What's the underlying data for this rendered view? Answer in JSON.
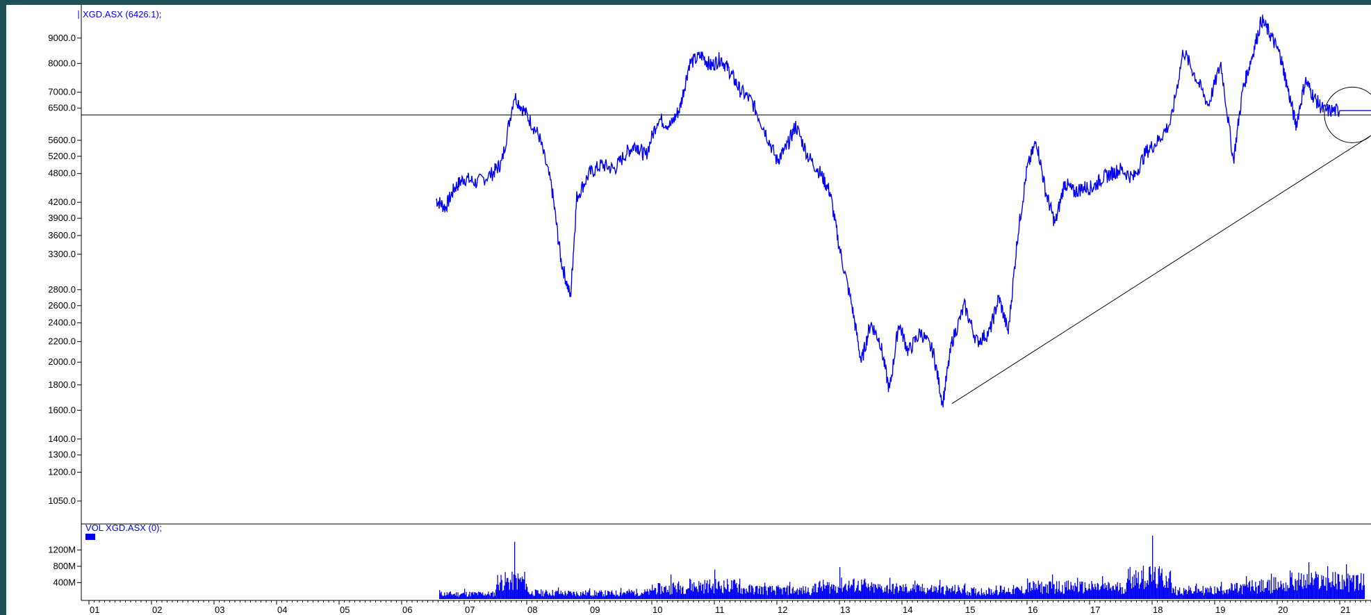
{
  "colors": {
    "background": "#1f4f57",
    "panel": "#ffffff",
    "series": "#0000ff",
    "axis": "#000000"
  },
  "chart_data": [
    {
      "type": "line",
      "title": "XGD.ASX (6426.1);",
      "y_scale": "log",
      "ylim": [
        950,
        10500
      ],
      "yticks": [
        9000.0,
        8000.0,
        7000.0,
        6500.0,
        5600.0,
        5200.0,
        4800.0,
        4200.0,
        3900.0,
        3600.0,
        3300.0,
        2800.0,
        2600.0,
        2400.0,
        2200.0,
        2000.0,
        1800.0,
        1600.0,
        1400.0,
        1300.0,
        1200.0,
        1050.0
      ],
      "ytick_labels": [
        "9000.0",
        "8000.0",
        "7000.0",
        "6500.0",
        "5600.0",
        "5200.0",
        "4800.0",
        "4200.0",
        "3900.0",
        "3600.0",
        "3300.0",
        "2800.0",
        "2600.0",
        "2400.0",
        "2200.0",
        "2000.0",
        "1800.0",
        "1600.0",
        "1400.0",
        "1300.0",
        "1200.0",
        "1050.0"
      ],
      "x_tick_labels": [
        "01",
        "02",
        "03",
        "04",
        "05",
        "06",
        "07",
        "08",
        "09",
        "10",
        "11",
        "12",
        "13",
        "14",
        "15",
        "16",
        "17",
        "18",
        "19",
        "20",
        "21"
      ],
      "xlim": [
        2001.0,
        2022.1
      ],
      "series": [
        {
          "x": [
            2006.55,
            2006.7,
            2006.85,
            2007.0,
            2007.2,
            2007.45,
            2007.6,
            2007.8,
            2008.0,
            2008.2,
            2008.4,
            2008.55,
            2008.7,
            2008.8,
            2009.0,
            2009.2,
            2009.4,
            2009.6,
            2009.75,
            2009.9,
            2010.1,
            2010.3,
            2010.45,
            2010.6,
            2010.8,
            2010.95,
            2011.1,
            2011.25,
            2011.4,
            2011.6,
            2011.8,
            2012.0,
            2012.15,
            2012.3,
            2012.5,
            2012.7,
            2012.85,
            2013.0,
            2013.2,
            2013.35,
            2013.5,
            2013.65,
            2013.8,
            2013.95,
            2014.1,
            2014.3,
            2014.5,
            2014.65,
            2014.8,
            2015.0,
            2015.2,
            2015.4,
            2015.55,
            2015.7,
            2015.85,
            2016.0,
            2016.15,
            2016.3,
            2016.45,
            2016.6,
            2016.75,
            2016.9,
            2017.05,
            2017.2,
            2017.35,
            2017.5,
            2017.7,
            2017.9,
            2018.1,
            2018.3,
            2018.5,
            2018.7,
            2018.9,
            2019.1,
            2019.3,
            2019.45,
            2019.6,
            2019.75,
            2019.9,
            2020.05,
            2020.15,
            2020.3,
            2020.45,
            2020.6,
            2020.75,
            2020.95,
            2021.1,
            2021.25,
            2021.4,
            2021.55
          ],
          "y": [
            4250,
            4100,
            4500,
            4700,
            4600,
            4800,
            5050,
            6900,
            6300,
            5700,
            4500,
            3200,
            2700,
            4300,
            4800,
            5000,
            4900,
            5300,
            5500,
            5200,
            6200,
            6000,
            6500,
            8000,
            8300,
            7900,
            8200,
            7700,
            7100,
            6700,
            5900,
            5100,
            5400,
            6000,
            5200,
            4800,
            4400,
            3400,
            2600,
            2000,
            2400,
            2200,
            1750,
            2400,
            2100,
            2300,
            2100,
            1650,
            2200,
            2600,
            2200,
            2300,
            2700,
            2300,
            3600,
            4900,
            5600,
            4400,
            3800,
            4600,
            4400,
            4500,
            4500,
            4700,
            4800,
            4900,
            4700,
            5300,
            5600,
            6100,
            8500,
            7500,
            6600,
            8000,
            5100,
            7100,
            8300,
            9800,
            9100,
            8300,
            7300,
            6000,
            7400,
            6800,
            6426.1,
            6426.1,
            6426.1,
            6426.1,
            6426.1,
            6426.1
          ]
        }
      ],
      "annotations": {
        "horizontal_line": 6300,
        "trendline": [
          [
            2014.8,
            1650
          ],
          [
            2022.1,
            6400
          ]
        ],
        "circle_center": [
          2021.2,
          6300
        ]
      }
    },
    {
      "type": "bar",
      "title": "VOL XGD.ASX (0);",
      "ylim": [
        0,
        1700
      ],
      "yticks": [
        1200,
        800,
        400
      ],
      "ytick_labels": [
        "1200M",
        "800M",
        "400M"
      ],
      "series": [
        {
          "x": [
            2006.6,
            2007.0,
            2007.5,
            2007.8,
            2008.0,
            2008.5,
            2009.0,
            2009.5,
            2010.0,
            2010.3,
            2010.6,
            2011.0,
            2011.4,
            2011.8,
            2012.2,
            2012.6,
            2013.0,
            2013.4,
            2013.8,
            2014.2,
            2014.6,
            2015.0,
            2015.5,
            2016.0,
            2016.4,
            2016.8,
            2017.2,
            2017.6,
            2018.0,
            2018.3,
            2018.7,
            2019.1,
            2019.5,
            2019.9,
            2020.2,
            2020.5,
            2020.8,
            2021.1,
            2021.4
          ],
          "y": [
            220,
            250,
            230,
            1400,
            300,
            280,
            260,
            270,
            350,
            600,
            500,
            720,
            500,
            400,
            420,
            380,
            780,
            500,
            520,
            450,
            470,
            380,
            330,
            500,
            600,
            520,
            560,
            500,
            1550,
            400,
            380,
            420,
            560,
            620,
            700,
            900,
            800,
            850,
            700
          ]
        }
      ]
    }
  ]
}
